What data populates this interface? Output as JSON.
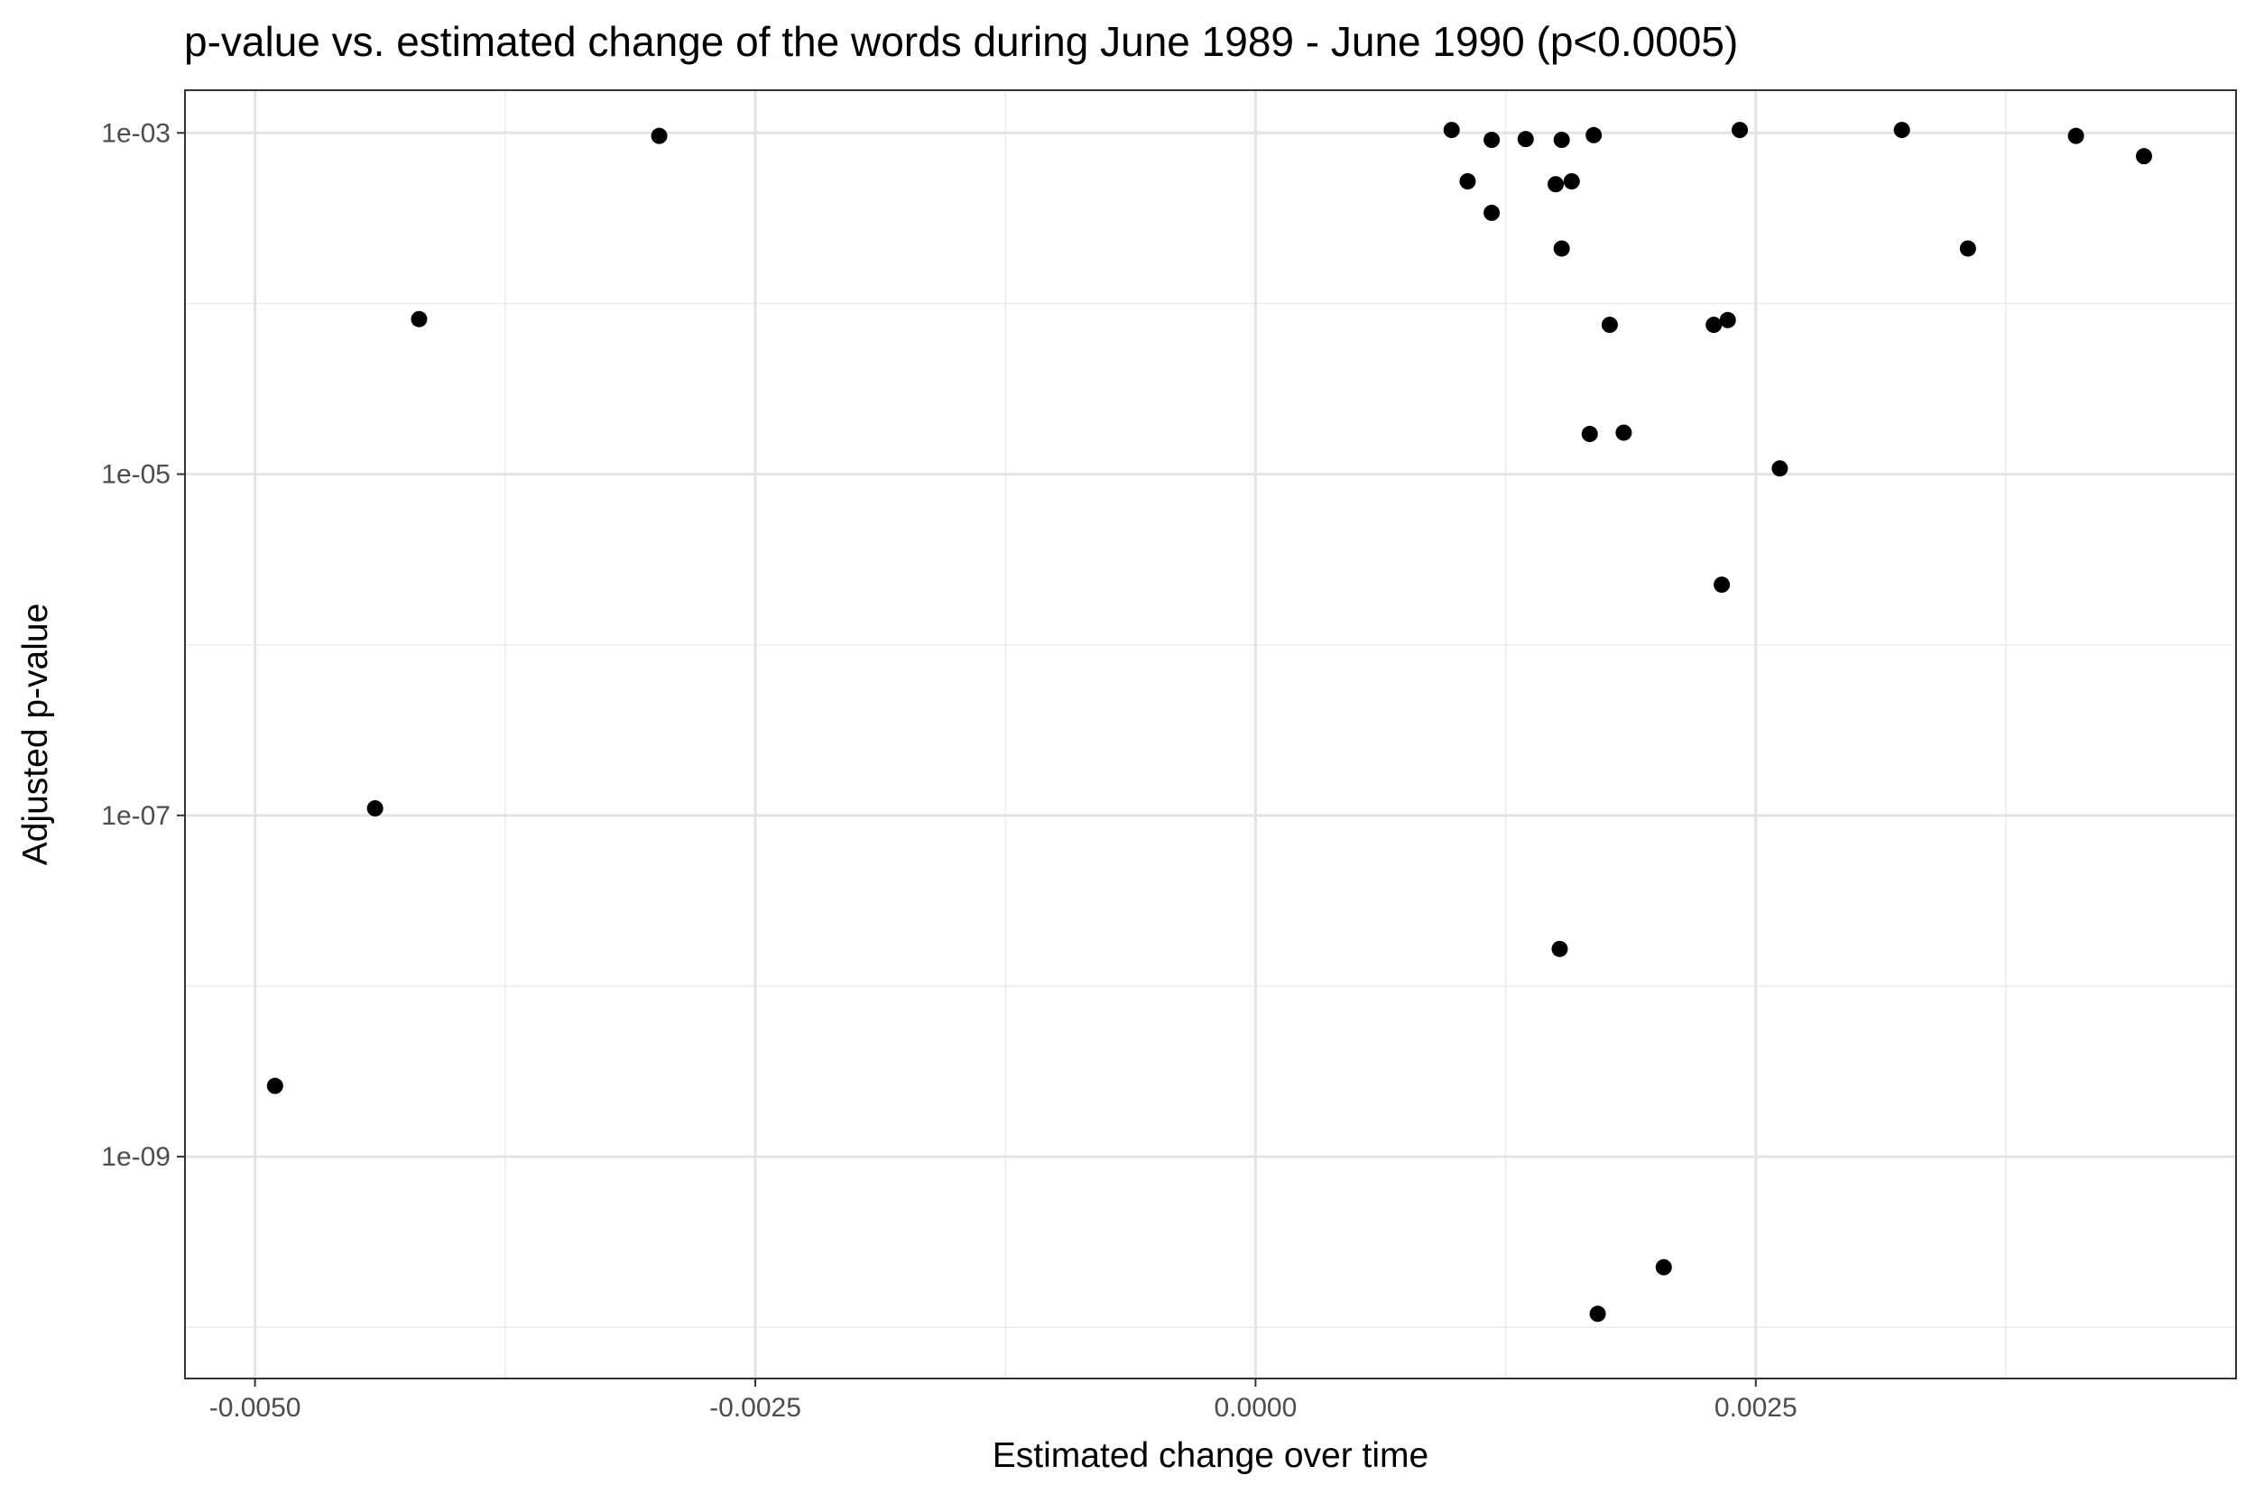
{
  "chart_data": {
    "type": "scatter",
    "title": "p-value vs. estimated change of the words during June 1989 - June 1990 (p<0.0005)",
    "xlabel": "Estimated change over time",
    "ylabel": "Adjusted p-value",
    "xlim": [
      -0.00535,
      0.0049
    ],
    "ylim_log10": [
      -10.3,
      -2.75
    ],
    "y_scale": "log10",
    "grid": true,
    "x_ticks": [
      {
        "value": -0.005,
        "label": "-0.0050"
      },
      {
        "value": -0.0025,
        "label": "-0.0025"
      },
      {
        "value": 0.0,
        "label": "0.0000"
      },
      {
        "value": 0.0025,
        "label": "0.0025"
      }
    ],
    "x_minor_ticks": [
      -0.00375,
      -0.00125,
      0.00125,
      0.00375
    ],
    "y_ticks": [
      {
        "log10": -3,
        "label": "1e-03"
      },
      {
        "log10": -5,
        "label": "1e-05"
      },
      {
        "log10": -7,
        "label": "1e-07"
      },
      {
        "log10": -9,
        "label": "1e-09"
      }
    ],
    "y_minor_ticks_log10": [
      -4,
      -6,
      -8,
      -10
    ],
    "point_color": "#000000",
    "points": [
      {
        "x": -0.0049,
        "y": 2.6e-09
      },
      {
        "x": -0.0044,
        "y": 1.1e-07
      },
      {
        "x": -0.00418,
        "y": 8.1e-05
      },
      {
        "x": -0.00298,
        "y": 0.00096
      },
      {
        "x": 0.00098,
        "y": 0.00104
      },
      {
        "x": 0.00106,
        "y": 0.00052
      },
      {
        "x": 0.00118,
        "y": 0.00091
      },
      {
        "x": 0.00118,
        "y": 0.00034
      },
      {
        "x": 0.00135,
        "y": 0.00092
      },
      {
        "x": 0.0015,
        "y": 0.0005
      },
      {
        "x": 0.00152,
        "y": 1.65e-08
      },
      {
        "x": 0.00153,
        "y": 0.00091
      },
      {
        "x": 0.00153,
        "y": 0.00021
      },
      {
        "x": 0.00158,
        "y": 0.00052
      },
      {
        "x": 0.00167,
        "y": 1.72e-05
      },
      {
        "x": 0.00169,
        "y": 0.00097
      },
      {
        "x": 0.00171,
        "y": 1.2e-10
      },
      {
        "x": 0.00177,
        "y": 7.5e-05
      },
      {
        "x": 0.00184,
        "y": 1.75e-05
      },
      {
        "x": 0.00204,
        "y": 2.25e-10
      },
      {
        "x": 0.00229,
        "y": 7.5e-05
      },
      {
        "x": 0.00233,
        "y": 2.25e-06
      },
      {
        "x": 0.00236,
        "y": 8e-05
      },
      {
        "x": 0.00242,
        "y": 0.00104
      },
      {
        "x": 0.00262,
        "y": 1.08e-05
      },
      {
        "x": 0.00323,
        "y": 0.00104
      },
      {
        "x": 0.00356,
        "y": 0.00021
      },
      {
        "x": 0.0041,
        "y": 0.00096
      },
      {
        "x": 0.00444,
        "y": 0.00073
      }
    ]
  }
}
